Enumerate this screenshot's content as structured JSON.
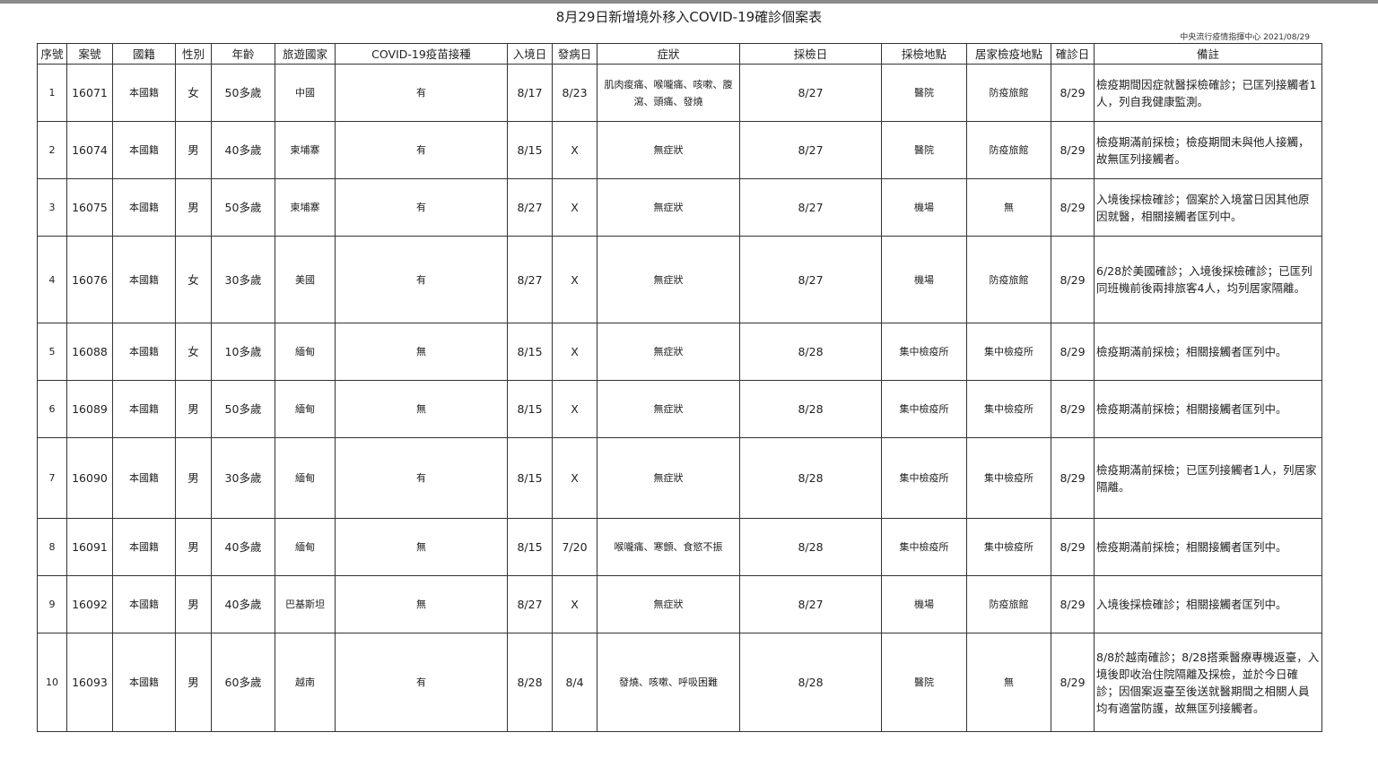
{
  "title": "8月29日新增境外移入COVID-19確診個案表",
  "source": "中央流行疫情指揮中心 2021/08/29",
  "headers": [
    "序號",
    "案號",
    "國籍",
    "性別",
    "年齡",
    "旅遊國家",
    "COVID-19疫苗接種",
    "入境日",
    "發病日",
    "症狀",
    "採檢日",
    "採檢地點",
    "居家檢疫地點",
    "確診日",
    "備註"
  ],
  "rows": [
    [
      "1",
      "16071",
      "本國籍",
      "女",
      "50多歲",
      "中國",
      "有",
      "8/17",
      "8/23",
      "肌肉痠痛、喉嚨痛、咳嗽、腹瀉、頭痛、發燒",
      "8/27",
      "醫院",
      "防疫旅館",
      "8/29",
      "檢疫期間因症就醫採檢確診；已匡列接觸者1人，列自我健康監測。"
    ],
    [
      "2",
      "16074",
      "本國籍",
      "男",
      "40多歲",
      "柬埔寨",
      "有",
      "8/15",
      "X",
      "無症狀",
      "8/27",
      "醫院",
      "防疫旅館",
      "8/29",
      "檢疫期滿前採檢；檢疫期間未與他人接觸，故無匡列接觸者。"
    ],
    [
      "3",
      "16075",
      "本國籍",
      "男",
      "50多歲",
      "柬埔寨",
      "有",
      "8/27",
      "X",
      "無症狀",
      "8/27",
      "機場",
      "無",
      "8/29",
      "入境後採檢確診；個案於入境當日因其他原因就醫，相關接觸者匡列中。"
    ],
    [
      "4",
      "16076",
      "本國籍",
      "女",
      "30多歲",
      "美國",
      "有",
      "8/27",
      "X",
      "無症狀",
      "8/27",
      "機場",
      "防疫旅館",
      "8/29",
      "6/28於美國確診；入境後採檢確診；已匡列同班機前後兩排旅客4人，均列居家隔離。"
    ],
    [
      "5",
      "16088",
      "本國籍",
      "女",
      "10多歲",
      "緬甸",
      "無",
      "8/15",
      "X",
      "無症狀",
      "8/28",
      "集中檢疫所",
      "集中檢疫所",
      "8/29",
      "檢疫期滿前採檢；相關接觸者匡列中。"
    ],
    [
      "6",
      "16089",
      "本國籍",
      "男",
      "50多歲",
      "緬甸",
      "無",
      "8/15",
      "X",
      "無症狀",
      "8/28",
      "集中檢疫所",
      "集中檢疫所",
      "8/29",
      "檢疫期滿前採檢；相關接觸者匡列中。"
    ],
    [
      "7",
      "16090",
      "本國籍",
      "男",
      "30多歲",
      "緬甸",
      "有",
      "8/15",
      "X",
      "無症狀",
      "8/28",
      "集中檢疫所",
      "集中檢疫所",
      "8/29",
      "檢疫期滿前採檢；已匡列接觸者1人，列居家隔離。"
    ],
    [
      "8",
      "16091",
      "本國籍",
      "男",
      "40多歲",
      "緬甸",
      "無",
      "8/15",
      "7/20",
      "喉嚨痛、寒顫、食慾不振",
      "8/28",
      "集中檢疫所",
      "集中檢疫所",
      "8/29",
      "檢疫期滿前採檢；相關接觸者匡列中。"
    ],
    [
      "9",
      "16092",
      "本國籍",
      "男",
      "40多歲",
      "巴基斯坦",
      "無",
      "8/27",
      "X",
      "無症狀",
      "8/27",
      "機場",
      "防疫旅館",
      "8/29",
      "入境後採檢確診；相關接觸者匡列中。"
    ],
    [
      "10",
      "16093",
      "本國籍",
      "男",
      "60多歲",
      "越南",
      "有",
      "8/28",
      "8/4",
      "發燒、咳嗽、呼吸困難",
      "8/28",
      "醫院",
      "無",
      "8/29",
      "8/8於越南確診；8/28搭乘醫療專機返臺，入境後即收治住院隔離及採檢，並於今日確診；因個案返臺至後送就醫期間之相關人員均有適當防護，故無匡列接觸者。"
    ]
  ]
}
